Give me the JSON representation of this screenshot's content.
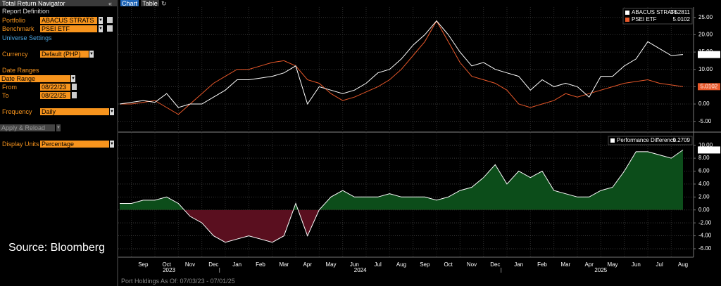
{
  "panel": {
    "title": "Total Return Navigator",
    "collapse": "«",
    "report_definition": "Report Definition",
    "portfolio_label": "Portfolio",
    "portfolio": "ABACUS STRATS",
    "benchmark_label": "Benchmark",
    "benchmark": "PSEI ETF",
    "universe_settings": "Universe Settings",
    "currency_label": "Currency",
    "currency": "Default (PHP)",
    "date_ranges": "Date Ranges",
    "date_range": "Date Range",
    "from_label": "From",
    "from": "08/22/23",
    "to_label": "To",
    "to": "08/22/25",
    "frequency_label": "Frequency",
    "frequency": "Daily",
    "apply": "Apply & Reload",
    "display_units_label": "Display Units",
    "display_units": "Percentage"
  },
  "tabs": [
    "Chart",
    "Table"
  ],
  "source": "Source: Bloomberg",
  "footer": "Port Holdings As Of: 07/03/23 - 07/01/25",
  "chart_data": [
    {
      "type": "line",
      "grid": true,
      "series": [
        {
          "name": "ABACUS STRATS",
          "color": "#ffffff",
          "values": [
            0,
            0.5,
            1,
            0.5,
            3,
            -1,
            0,
            0,
            2,
            4,
            7,
            7,
            7.5,
            8,
            9,
            11,
            0,
            5,
            4,
            3,
            4,
            6,
            9,
            10,
            13,
            17,
            20,
            24,
            20,
            15,
            11,
            12,
            10,
            9,
            8,
            4,
            7,
            5,
            6,
            5,
            2,
            8,
            8,
            11,
            13,
            18,
            16,
            14,
            14.2811
          ]
        },
        {
          "name": "PSEI ETF",
          "color": "#e8582a",
          "values": [
            0,
            0,
            0.5,
            1,
            -1,
            -3,
            0,
            3,
            6,
            8,
            10,
            10,
            11,
            12,
            12.5,
            11,
            7,
            6,
            3,
            1,
            2,
            3.5,
            5,
            7,
            10,
            14,
            18,
            24,
            18,
            12,
            8,
            7,
            6,
            4,
            0,
            -1,
            0,
            1,
            3,
            2,
            3,
            4,
            5,
            6,
            6.5,
            7,
            6,
            5.5,
            5.0102
          ]
        }
      ],
      "ylim": [
        -7.5,
        28
      ],
      "yticks": [
        {
          "value": -5,
          "label": "-5.00"
        },
        {
          "value": 0,
          "label": "0.00"
        },
        {
          "value": 5,
          "label": "5.00"
        },
        {
          "value": 10,
          "label": "10.00"
        },
        {
          "value": 15,
          "label": "15.00"
        },
        {
          "value": 20,
          "label": "20.00"
        },
        {
          "value": 25,
          "label": "25.00"
        }
      ]
    },
    {
      "type": "area",
      "grid": true,
      "categories": [
        null,
        null,
        "Sep",
        null,
        "Oct",
        null,
        "Nov",
        null,
        "Dec",
        null,
        "Jan",
        null,
        "Feb",
        null,
        "Mar",
        null,
        "Apr",
        null,
        "May",
        null,
        "Jun",
        null,
        "Jul",
        null,
        "Aug",
        null,
        "Sep",
        null,
        "Oct",
        null,
        "Nov",
        null,
        "Dec",
        null,
        "Jan",
        null,
        "Feb",
        null,
        "Mar",
        null,
        "Apr",
        null,
        "May",
        null,
        "Jun",
        null,
        "Jul",
        null,
        "Aug"
      ],
      "years": [
        "2023",
        "2024",
        "2025"
      ],
      "series": [
        {
          "name": "Performance Difference",
          "color": "#ffffff",
          "values": [
            1,
            1,
            1.5,
            1.5,
            2,
            1,
            -1,
            -2,
            -4,
            -5,
            -4.5,
            -4,
            -4.5,
            -5,
            -4,
            1,
            -4,
            0,
            2,
            3,
            2,
            2,
            2,
            2.5,
            2,
            2,
            2,
            1.5,
            2,
            3,
            3.5,
            5,
            7,
            4,
            6,
            5,
            6,
            3,
            2.5,
            2,
            2,
            3,
            3.5,
            6,
            9,
            9,
            8.5,
            8,
            9.2709
          ]
        }
      ],
      "positive_color": "#0c4d1a",
      "negative_color": "#5a0f1f",
      "ylim": [
        -7.2,
        11.6
      ],
      "yticks": [
        {
          "value": -6,
          "label": "-6.00"
        },
        {
          "value": -4,
          "label": "-4.00"
        },
        {
          "value": -2,
          "label": "-2.00"
        },
        {
          "value": 0,
          "label": "0.00"
        },
        {
          "value": 2,
          "label": "2.00"
        },
        {
          "value": 4,
          "label": "4.00"
        },
        {
          "value": 6,
          "label": "6.00"
        },
        {
          "value": 8,
          "label": "8.00"
        },
        {
          "value": 10,
          "label": "10.00"
        }
      ]
    }
  ]
}
